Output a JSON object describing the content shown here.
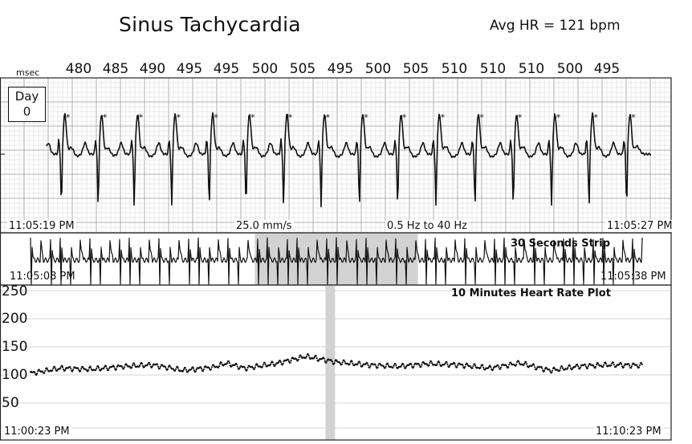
{
  "chart_data": [
    {
      "type": "line",
      "title": "Sinus Tachycardia",
      "subtitle": "Avg HR = 121 bpm",
      "rr_unit_label": "msec",
      "rr_intervals_msec": [
        "480",
        "485",
        "490",
        "495",
        "495",
        "500",
        "505",
        "495",
        "500",
        "505",
        "510",
        "510",
        "510",
        "500",
        "495"
      ],
      "badge": {
        "line1": "Day",
        "line2": "0"
      },
      "start_time": "11:05:19 PM",
      "end_time": "11:05:27 PM",
      "paper_speed": "25.0 mm/s",
      "filter": "0.5 Hz  to  40 Hz",
      "beat_times_s": [
        0.3,
        0.79,
        1.27,
        1.77,
        2.27,
        2.76,
        3.26,
        3.76,
        4.27,
        4.78,
        5.29,
        5.81,
        6.32,
        6.83,
        7.33,
        7.83
      ],
      "grid": true
    },
    {
      "type": "line",
      "title": "30  Seconds Strip",
      "start_time": "11:05:08 PM",
      "end_time": "11:05:38 PM",
      "highlight_range_s": [
        11,
        19
      ],
      "beat_count": 62
    },
    {
      "type": "scatter",
      "title": "10  Minutes Heart Rate Plot",
      "start_time": "11:00:23 PM",
      "end_time": "11:10:23 PM",
      "ylim": [
        50,
        250
      ],
      "yticks": [
        "250",
        "200",
        "150",
        "100",
        "50"
      ],
      "highlight_minute": 4.9,
      "x_minutes": [
        0,
        0.5,
        1,
        1.5,
        2,
        2.5,
        3,
        3.2,
        3.5,
        4,
        4.5,
        5,
        5.5,
        6,
        6.5,
        7,
        7.5,
        8,
        8.5,
        9,
        9.5,
        10
      ],
      "y_bpm": [
        103,
        112,
        110,
        115,
        118,
        108,
        114,
        121,
        112,
        120,
        133,
        123,
        118,
        115,
        120,
        118,
        112,
        121,
        108,
        116,
        118,
        117
      ],
      "grid": true
    }
  ]
}
